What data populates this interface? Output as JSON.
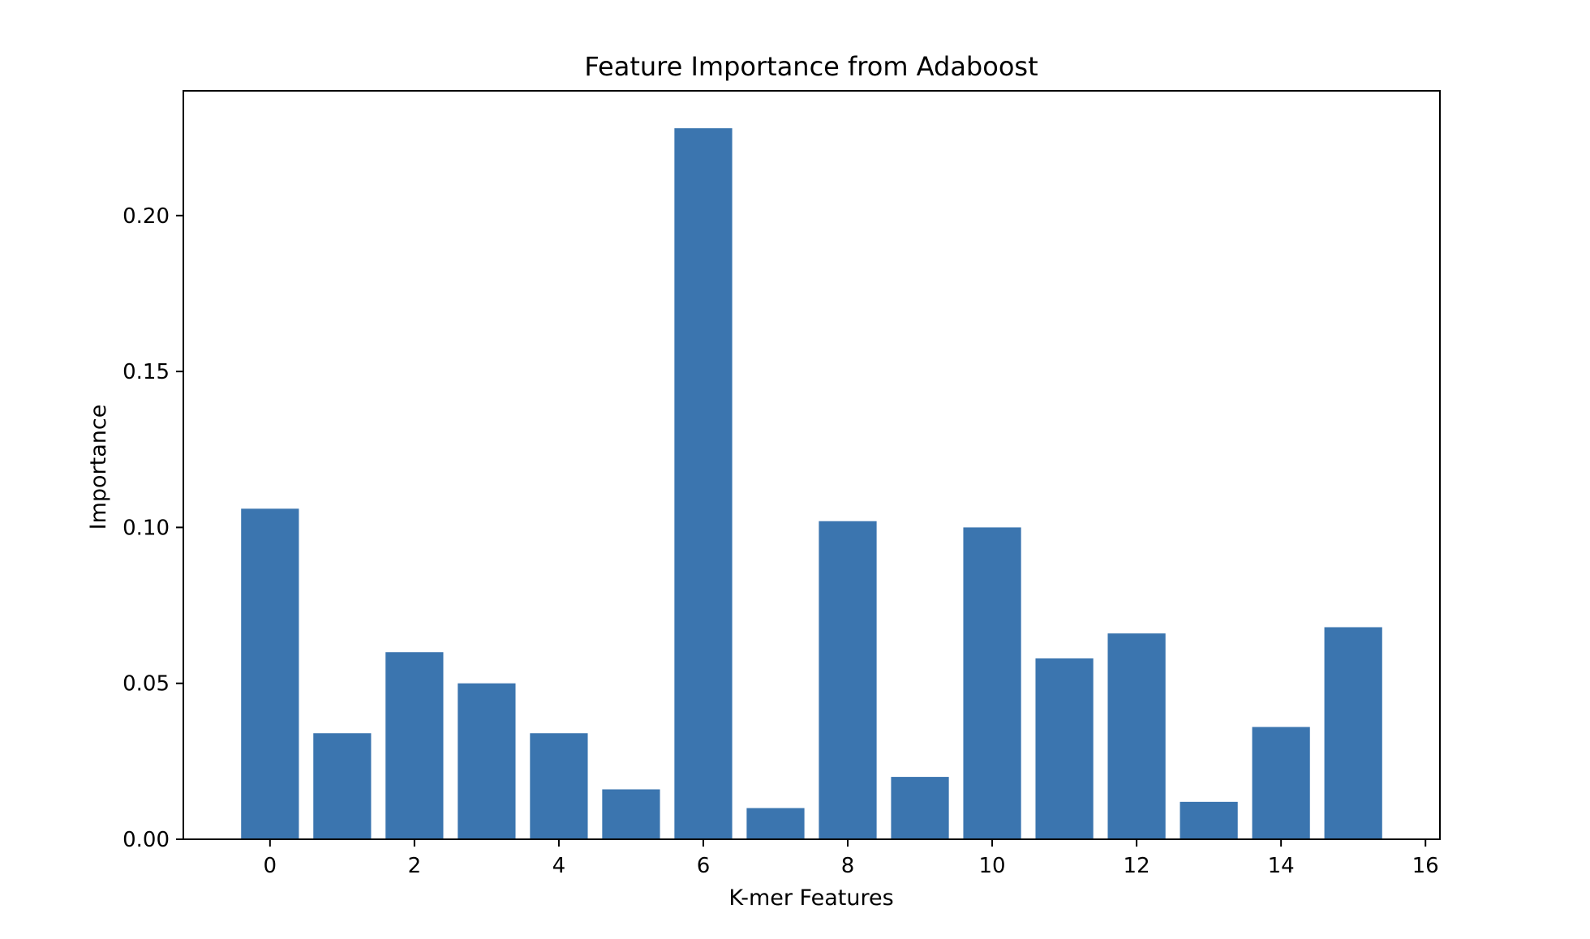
{
  "chart_data": {
    "type": "bar",
    "title": "Feature Importance from Adaboost",
    "xlabel": "K-mer Features",
    "ylabel": "Importance",
    "x": [
      0,
      1,
      2,
      3,
      4,
      5,
      6,
      7,
      8,
      9,
      10,
      11,
      12,
      13,
      14,
      15
    ],
    "values": [
      0.106,
      0.034,
      0.06,
      0.05,
      0.034,
      0.016,
      0.228,
      0.01,
      0.102,
      0.02,
      0.1,
      0.058,
      0.066,
      0.012,
      0.036,
      0.068
    ],
    "xlim": [
      -1.2,
      16.2
    ],
    "ylim": [
      0,
      0.24
    ],
    "xticks": [
      0,
      2,
      4,
      6,
      8,
      10,
      12,
      14,
      16
    ],
    "xtick_labels": [
      "0",
      "2",
      "4",
      "6",
      "8",
      "10",
      "12",
      "14",
      "16"
    ],
    "yticks": [
      0,
      0.05,
      0.1,
      0.15,
      0.2
    ],
    "ytick_labels": [
      "0.00",
      "0.05",
      "0.10",
      "0.15",
      "0.20"
    ],
    "grid": false,
    "legend": "none",
    "bar_color": "#3b75af"
  }
}
